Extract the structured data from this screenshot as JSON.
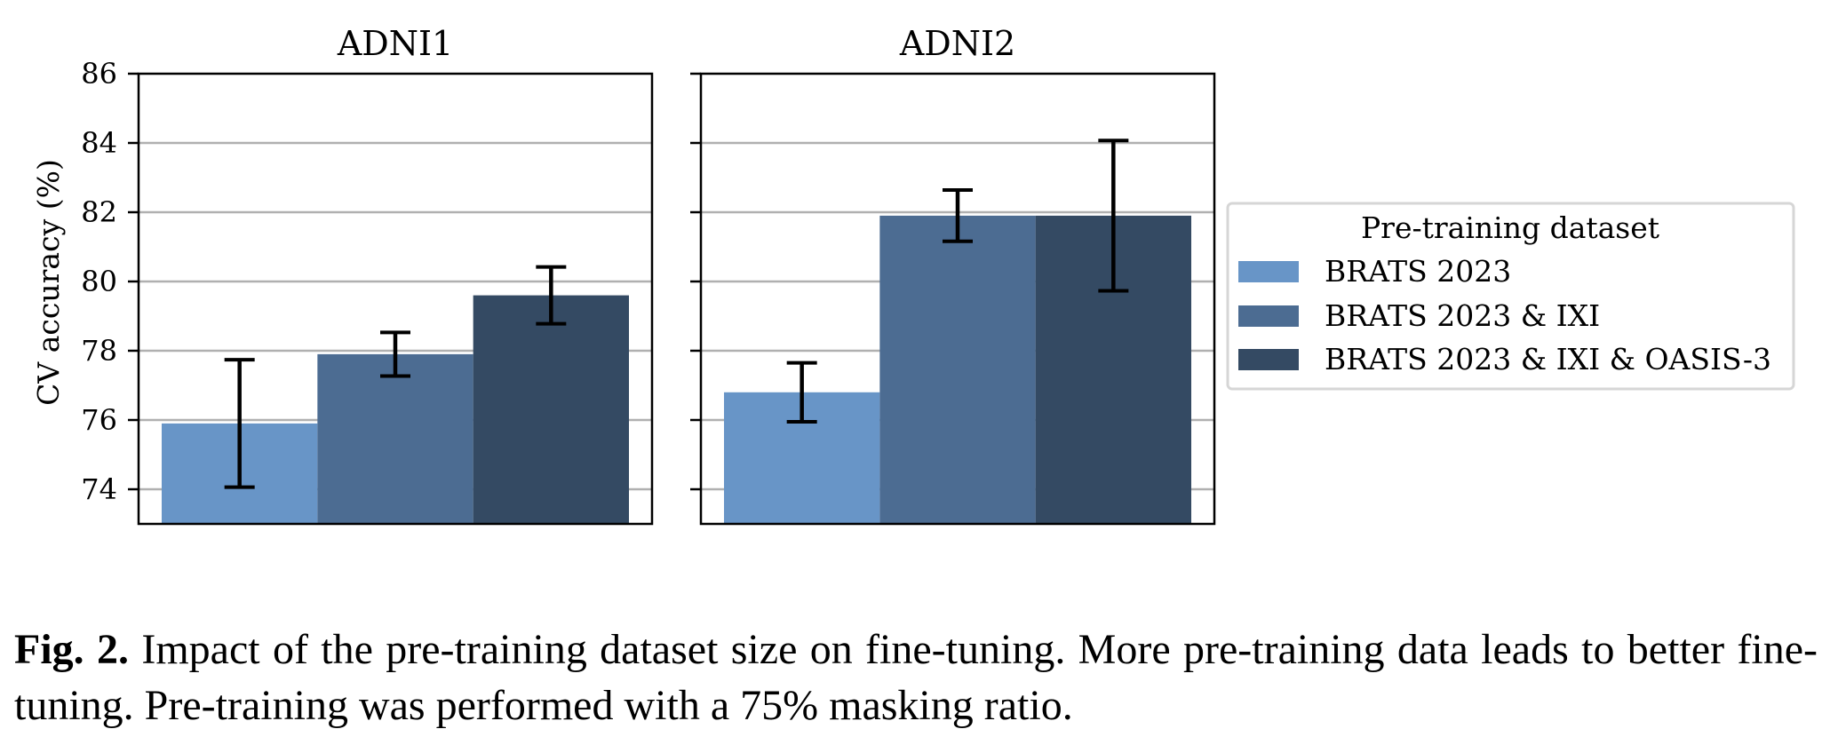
{
  "chart_data": {
    "type": "bar",
    "ylabel": "CV accuracy (%)",
    "ylim": [
      73,
      86
    ],
    "yticks": [
      74,
      76,
      78,
      80,
      82,
      84,
      86
    ],
    "grid": "y",
    "legend": {
      "title": "Pre-training dataset",
      "placement": "right",
      "entries": [
        "BRATS 2023",
        "BRATS 2023 & IXI",
        "BRATS 2023 & IXI & OASIS-3"
      ]
    },
    "series_colors": [
      "#6895c7",
      "#4c6c92",
      "#344a63"
    ],
    "panels": [
      {
        "title": "ADNI1",
        "series": [
          {
            "name": "BRATS 2023",
            "value": 75.9,
            "error": 1.84
          },
          {
            "name": "BRATS 2023 & IXI",
            "value": 77.9,
            "error": 0.63
          },
          {
            "name": "BRATS 2023 & IXI & OASIS-3",
            "value": 79.6,
            "error": 0.82
          }
        ]
      },
      {
        "title": "ADNI2",
        "series": [
          {
            "name": "BRATS 2023",
            "value": 76.8,
            "error": 0.85
          },
          {
            "name": "BRATS 2023 & IXI",
            "value": 81.9,
            "error": 0.74
          },
          {
            "name": "BRATS 2023 & IXI & OASIS-3",
            "value": 81.9,
            "error": 2.17
          }
        ]
      }
    ]
  },
  "caption": {
    "label": "Fig. 2.",
    "text": "Impact of the pre-training dataset size on fine-tuning. More pre-training data leads to better fine-tuning. Pre-training was performed with a 75% masking ratio."
  }
}
